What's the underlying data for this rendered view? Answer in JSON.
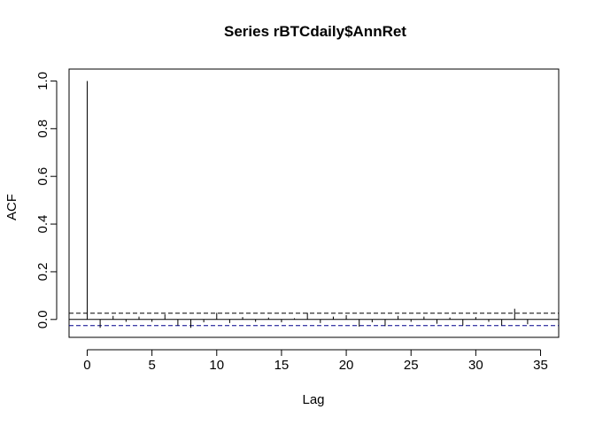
{
  "chart_data": {
    "type": "bar",
    "title": "Series  rBTCdaily$AnnRet",
    "xlabel": "Lag",
    "ylabel": "ACF",
    "xlim": [
      -1.4,
      36.4
    ],
    "ylim": [
      -0.075,
      1.05
    ],
    "x_ticks": [
      "0",
      "5",
      "10",
      "15",
      "20",
      "25",
      "30",
      "35"
    ],
    "y_ticks": [
      "0.0",
      "0.2",
      "0.4",
      "0.6",
      "0.8",
      "1.0"
    ],
    "confidence_band": 0.026,
    "confidence_color": "#00008b",
    "lags": [
      0,
      1,
      2,
      3,
      4,
      5,
      6,
      7,
      8,
      9,
      10,
      11,
      12,
      13,
      14,
      15,
      16,
      17,
      18,
      19,
      20,
      21,
      22,
      23,
      24,
      25,
      26,
      27,
      28,
      29,
      30,
      31,
      32,
      33,
      34
    ],
    "values": [
      1.0,
      -0.035,
      0.015,
      -0.01,
      0.012,
      -0.01,
      0.022,
      -0.025,
      -0.035,
      -0.012,
      0.028,
      -0.015,
      0.01,
      -0.01,
      0.008,
      -0.012,
      0.005,
      0.028,
      -0.015,
      0.012,
      0.018,
      -0.03,
      -0.012,
      -0.028,
      0.015,
      -0.01,
      0.012,
      -0.018,
      0.008,
      -0.025,
      0.01,
      -0.01,
      -0.025,
      0.045,
      -0.02
    ]
  }
}
